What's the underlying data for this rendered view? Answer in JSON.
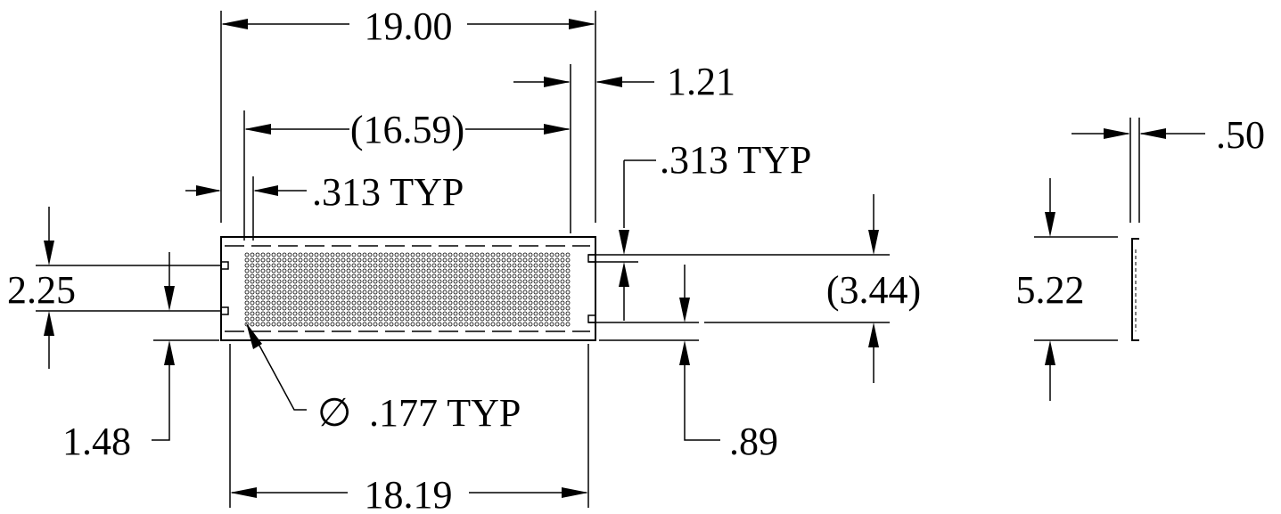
{
  "dimensions": {
    "overall_length": "19.00",
    "edge_offset": "1.21",
    "hole_span": "(16.59)",
    "margin_top_left": ".313  TYP",
    "margin_right": ".313  TYP",
    "slot_spacing": "2.25",
    "panel_height": "(3.44)",
    "hole_diameter": ".177  TYP",
    "bottom_offset": "1.48",
    "right_offset": ".89",
    "inner_length": "18.19",
    "side_depth": "5.22",
    "side_thickness": ".50"
  },
  "symbols": {
    "diameter": "∅"
  },
  "colors": {
    "ink": "#000000",
    "paper": "#ffffff"
  }
}
